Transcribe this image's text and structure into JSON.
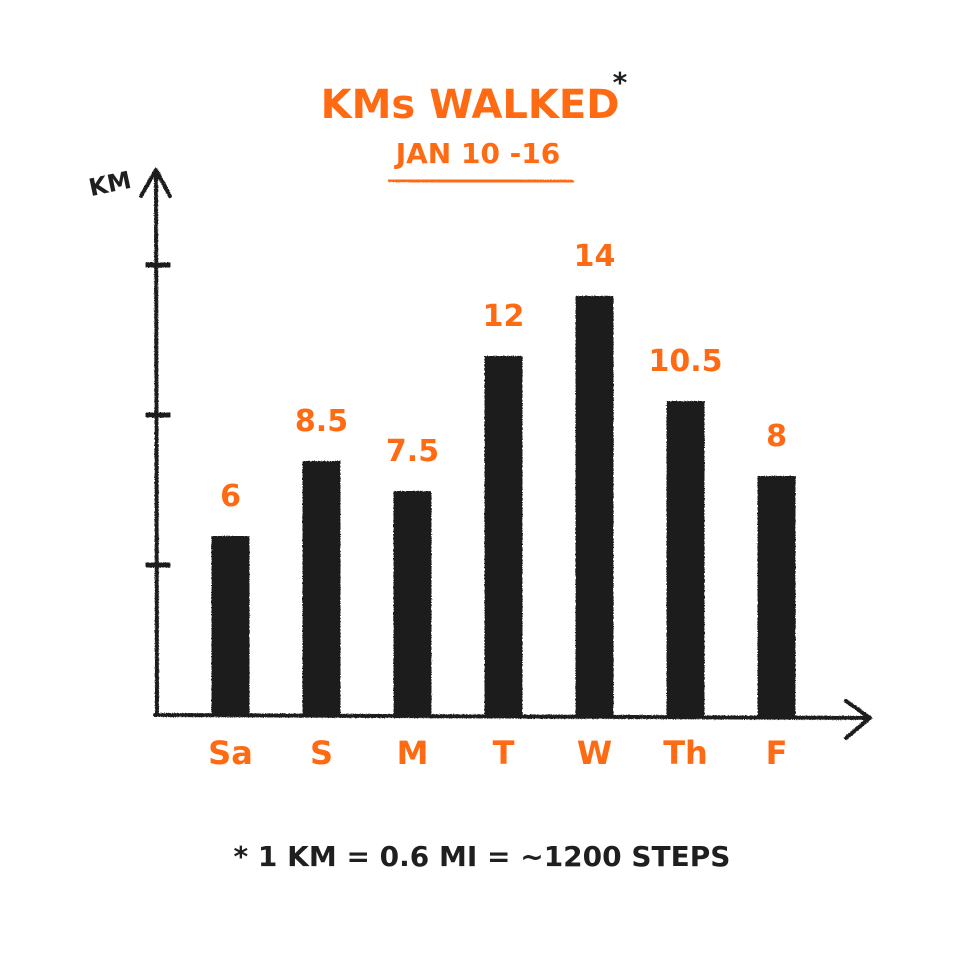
{
  "chart_data": {
    "type": "bar",
    "title": "KMs WALKED",
    "title_marker": "*",
    "subtitle": "JAN 10 -16",
    "ylabel": "KM",
    "xlabel": "",
    "categories": [
      "Sa",
      "S",
      "M",
      "T",
      "W",
      "Th",
      "F"
    ],
    "values": [
      6,
      8.5,
      7.5,
      12,
      14,
      10.5,
      8
    ],
    "value_labels": [
      "6",
      "8.5",
      "7.5",
      "12",
      "14",
      "10.5",
      "8"
    ],
    "ylim": [
      0,
      15
    ],
    "y_ticks": [
      5,
      10,
      15
    ],
    "grid": false,
    "legend": "none",
    "footnote": "* 1 KM = 0.6 MI = ~1200 STEPS",
    "colors": {
      "accent": "#ff6a13",
      "bar": "#1f1f1f",
      "axis": "#1f1f1f",
      "background": "#ffffff"
    }
  }
}
